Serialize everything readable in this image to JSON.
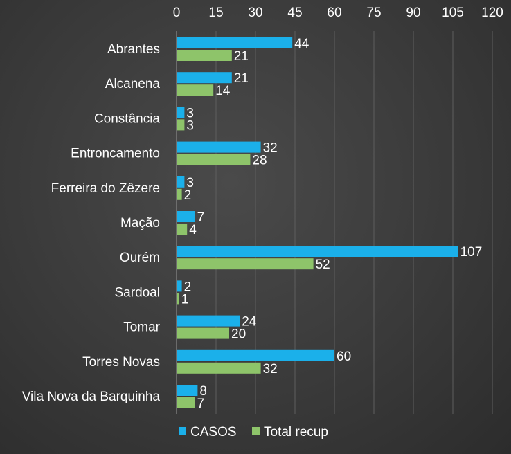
{
  "chart_data": {
    "type": "bar",
    "orientation": "horizontal",
    "categories": [
      "Abrantes",
      "Alcanena",
      "Constância",
      "Entroncamento",
      "Ferreira do Zêzere",
      "Mação",
      "Ourém",
      "Sardoal",
      "Tomar",
      "Torres Novas",
      "Vila Nova da Barquinha"
    ],
    "series": [
      {
        "name": "CASOS",
        "color": "#1bb0ea",
        "values": [
          44,
          21,
          3,
          32,
          3,
          7,
          107,
          2,
          24,
          60,
          8
        ]
      },
      {
        "name": "Total recup",
        "color": "#8ec46a",
        "values": [
          21,
          14,
          3,
          28,
          2,
          4,
          52,
          1,
          20,
          32,
          7
        ]
      }
    ],
    "xticks": [
      0,
      15,
      30,
      45,
      60,
      75,
      90,
      105,
      120
    ],
    "xlim": [
      0,
      120
    ],
    "grid": true,
    "legend_position": "bottom"
  }
}
